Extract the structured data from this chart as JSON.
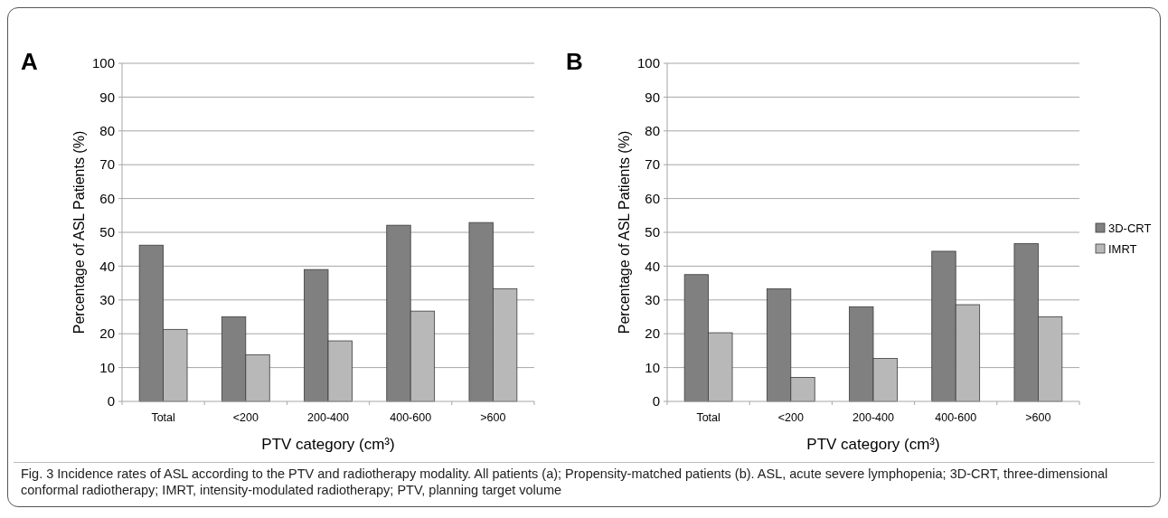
{
  "chart_data": [
    {
      "type": "bar",
      "title": "A",
      "xlabel": "PTV category (cm³)",
      "ylabel": "Percentage of ASL Patients (%)",
      "categories": [
        "Total",
        "<200",
        "200-400",
        "400-600",
        ">600"
      ],
      "series": [
        {
          "color": "#808080",
          "values": [
            46.2,
            25,
            39,
            52.1,
            52.9
          ]
        },
        {
          "color": "#b8b8b8",
          "values": [
            21.3,
            13.8,
            17.9,
            26.7,
            33.3
          ]
        }
      ],
      "ylim": [
        0,
        100
      ],
      "yticks": [
        0,
        10,
        20,
        30,
        40,
        50,
        60,
        70,
        80,
        90,
        100
      ],
      "grid": "y",
      "legend": false,
      "annotations": [
        "Fig. 3 Incidence rates of ASL according to the PTV and radiotherapy modality. All patients (a); Propensity-matched patients (b). ASL, acute severe lymphopenia; 3D-CRT, three-dimensional conformal radiotherapy; IMRT, intensity-modulated radiotherapy; PTV, planning target volume"
      ]
    },
    {
      "type": "bar",
      "title": "B",
      "xlabel": "PTV category (cm³)",
      "ylabel": "Percentage of ASL Patients (%)",
      "categories": [
        "Total",
        "<200",
        "200-400",
        "400-600",
        ">600"
      ],
      "series": [
        {
          "name": "3D-CRT",
          "color": "#808080",
          "values": [
            37.5,
            33.3,
            28,
            44.4,
            46.7
          ]
        },
        {
          "name": "IMRT",
          "color": "#b8b8b8",
          "values": [
            20.3,
            7.1,
            12.7,
            28.6,
            25
          ]
        }
      ],
      "ylim": [
        0,
        100
      ],
      "yticks": [
        0,
        10,
        20,
        30,
        40,
        50,
        60,
        70,
        80,
        90,
        100
      ],
      "grid": "y",
      "legend": "right"
    }
  ]
}
